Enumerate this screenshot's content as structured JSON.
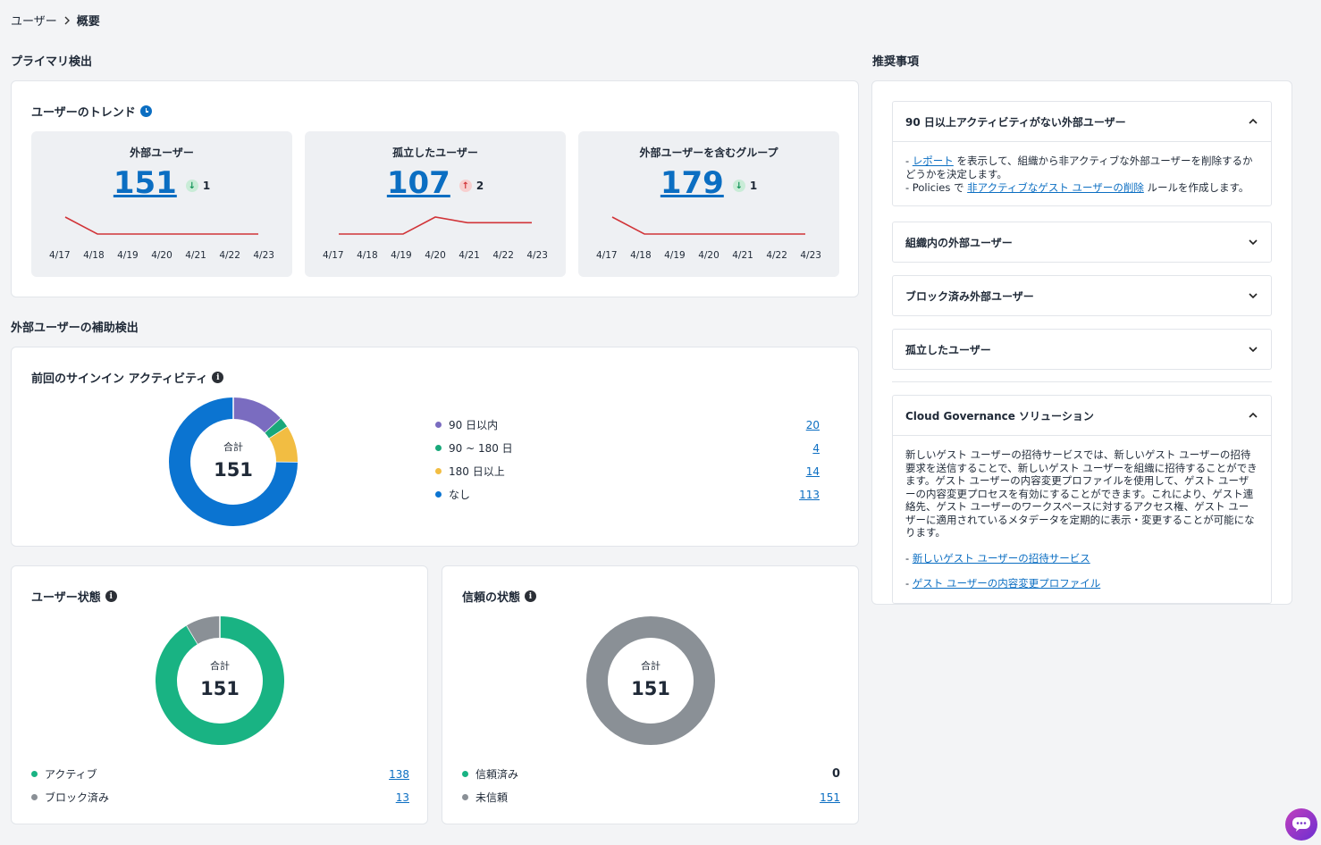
{
  "breadcrumb": {
    "parent": "ユーザー",
    "separator_icon": "chevron-right-icon",
    "current": "概要"
  },
  "primary": {
    "section_title": "プライマリ検出",
    "trend_card": {
      "title": "ユーザーのトレンド",
      "tiles": [
        {
          "title": "外部ユーザー",
          "value": "151",
          "delta": "1",
          "direction": "down",
          "color": "#d13438",
          "series": [
            4,
            1,
            1,
            1,
            1,
            1,
            1
          ],
          "dates": [
            "4/17",
            "4/18",
            "4/19",
            "4/20",
            "4/21",
            "4/22",
            "4/23"
          ]
        },
        {
          "title": "孤立したユーザー",
          "value": "107",
          "delta": "2",
          "direction": "up",
          "color": "#d13438",
          "series": [
            1,
            1,
            1,
            4,
            3,
            3,
            3
          ],
          "dates": [
            "4/17",
            "4/18",
            "4/19",
            "4/20",
            "4/21",
            "4/22",
            "4/23"
          ]
        },
        {
          "title": "外部ユーザーを含むグループ",
          "value": "179",
          "delta": "1",
          "direction": "down",
          "color": "#d13438",
          "series": [
            4,
            1,
            1,
            1,
            1,
            1,
            1
          ],
          "dates": [
            "4/17",
            "4/18",
            "4/19",
            "4/20",
            "4/21",
            "4/22",
            "4/23"
          ]
        }
      ]
    }
  },
  "secondary": {
    "section_title": "外部ユーザーの補助検出",
    "signin": {
      "title": "前回のサインイン アクティビティ",
      "total_label": "合計",
      "total": "151",
      "legend": [
        {
          "label": "90 日以内",
          "value": "20",
          "color": "#7a6cc0"
        },
        {
          "label": "90 ~ 180 日",
          "value": "4",
          "color": "#19a87a"
        },
        {
          "label": "180 日以上",
          "value": "14",
          "color": "#f2bd42"
        },
        {
          "label": "なし",
          "value": "113",
          "color": "#0b74d1"
        }
      ]
    },
    "user_state": {
      "title": "ユーザー状態",
      "total_label": "合計",
      "total": "151",
      "legend": [
        {
          "label": "アクティブ",
          "value": "138",
          "color": "#19b383"
        },
        {
          "label": "ブロック済み",
          "value": "13",
          "color": "#8a9096"
        }
      ]
    },
    "trust_state": {
      "title": "信頼の状態",
      "total_label": "合計",
      "total": "151",
      "legend": [
        {
          "label": "信頼済み",
          "value": "0",
          "color": "#19b383"
        },
        {
          "label": "未信頼",
          "value": "151",
          "color": "#8a9096"
        }
      ]
    }
  },
  "recommendations": {
    "section_title": "推奨事項",
    "inactive": {
      "title": "90 日以上アクティビティがない外部ユーザー",
      "line1_prefix": "- ",
      "line1_link": "レポート",
      "line1_suffix": " を表示して、組織から非アクティブな外部ユーザーを削除するかどうかを決定します。",
      "line2_prefix": "- Policies で ",
      "line2_link": "非アクティブなゲスト ユーザーの削除",
      "line2_suffix": " ルールを作成します。"
    },
    "collapsed_items": [
      "組織内の外部ユーザー",
      "ブロック済み外部ユーザー",
      "孤立したユーザー"
    ],
    "cloud": {
      "title": "Cloud Governance ソリューション",
      "description": "新しいゲスト ユーザーの招待サービスでは、新しいゲスト ユーザーの招待要求を送信することで、新しいゲスト ユーザーを組織に招待することができます。ゲスト ユーザーの内容変更プロファイルを使用して、ゲスト ユーザーの内容変更プロセスを有効にすることができます。これにより、ゲスト連絡先、ゲスト ユーザーのワークスペースに対するアクセス権、ゲスト ユーザーに適用されているメタデータを定期的に表示・変更することが可能になります。",
      "link1_prefix": "- ",
      "link1": "新しいゲスト ユーザーの招待サービス",
      "link2_prefix": "- ",
      "link2": "ゲスト ユーザーの内容変更プロファイル"
    }
  },
  "chat_icon": "chat-bubble-icon"
}
